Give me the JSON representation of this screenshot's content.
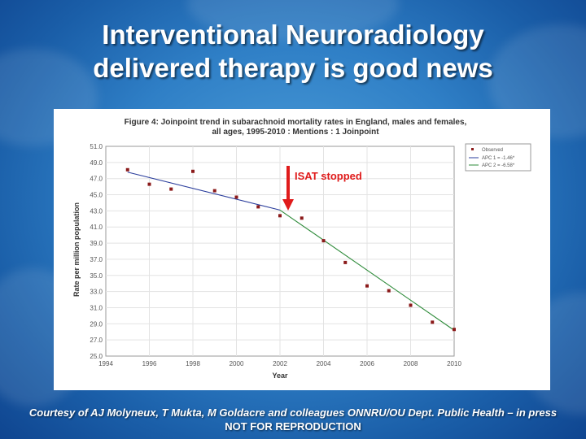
{
  "slide": {
    "title_line1": "Interventional Neuroradiology",
    "title_line2": "delivered therapy is good news",
    "credit": "Courtesy of AJ Molyneux, T Mukta, M Goldacre and colleagues ONNRU/OU Dept. Public Health – in press",
    "notice": "NOT FOR REPRODUCTION"
  },
  "chart_data": {
    "type": "scatter",
    "title_line1": "Figure 4: Joinpoint trend in subarachnoid mortality rates in England, males and females,",
    "title_line2": "all ages, 1995-2010 : Mentions : 1 Joinpoint",
    "xlabel": "Year",
    "ylabel": "Rate per million population",
    "xlim": [
      1994,
      2010
    ],
    "ylim": [
      25.0,
      51.0
    ],
    "x_ticks": [
      "1994",
      "1996",
      "1998",
      "2000",
      "2002",
      "2004",
      "2006",
      "2008",
      "2010"
    ],
    "y_ticks": [
      "25.0",
      "27.0",
      "29.0",
      "31.0",
      "33.0",
      "35.0",
      "37.0",
      "39.0",
      "41.0",
      "43.0",
      "45.0",
      "47.0",
      "49.0",
      "51.0"
    ],
    "observed": {
      "name": "Observed",
      "color": "#8b1a1a",
      "x": [
        1995,
        1996,
        1997,
        1998,
        1999,
        2000,
        2001,
        2002,
        2003,
        2004,
        2005,
        2006,
        2007,
        2008,
        2009,
        2010
      ],
      "y": [
        48.1,
        46.3,
        45.7,
        47.9,
        45.5,
        44.7,
        43.5,
        42.4,
        42.1,
        39.3,
        36.6,
        33.7,
        33.1,
        31.3,
        29.2,
        28.3
      ]
    },
    "fits": [
      {
        "name": "APC 1 = -1.46*",
        "color": "#2a3d9c",
        "x": [
          1995,
          2002
        ],
        "y": [
          47.8,
          43.1
        ]
      },
      {
        "name": "APC 2 = -6.58*",
        "color": "#2e8b3a",
        "x": [
          2002,
          2010
        ],
        "y": [
          43.1,
          28.2
        ]
      }
    ],
    "legend_position": "top-right",
    "annotation": {
      "text": "ISAT stopped",
      "color": "#e01b1b",
      "x": 2002
    }
  }
}
